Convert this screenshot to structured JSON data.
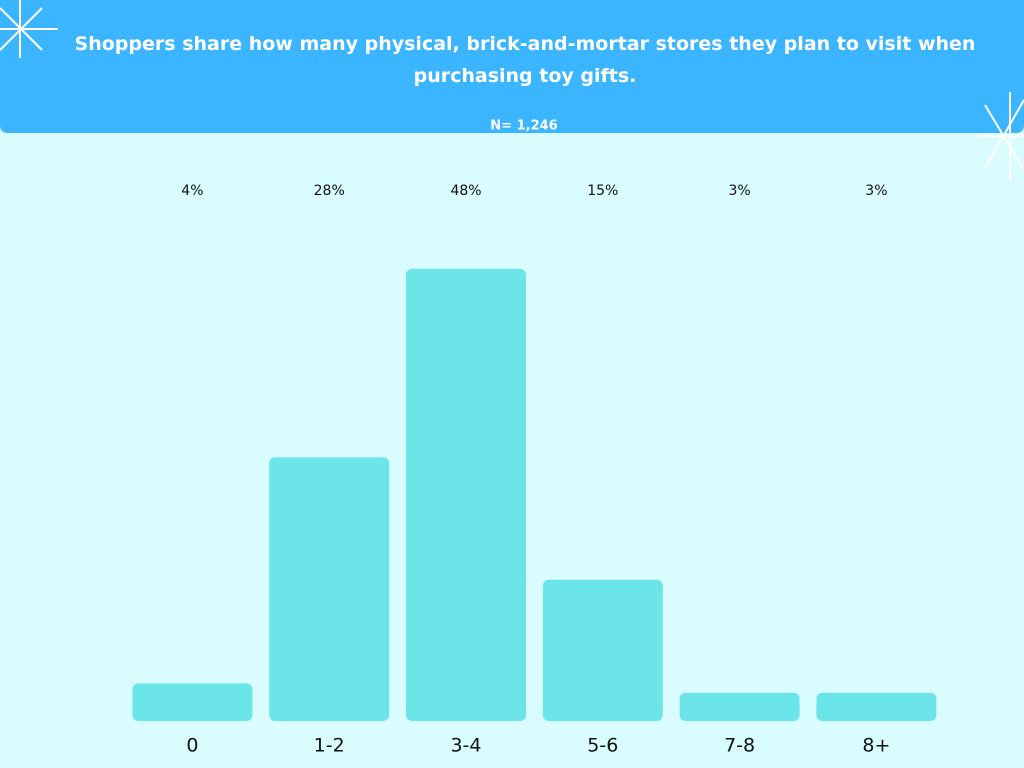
{
  "chart_data": {
    "type": "bar",
    "title": "Shoppers share how many physical, brick-and-mortar stores they plan to visit when purchasing toy gifts.",
    "subtitle": "N= 1,246",
    "categories": [
      "0",
      "1-2",
      "3-4",
      "5-6",
      "7-8",
      "8+"
    ],
    "values": [
      4,
      28,
      48,
      15,
      3,
      3
    ],
    "value_labels": [
      "4%",
      "28%",
      "48%",
      "15%",
      "3%",
      "3%"
    ],
    "color": "#6ce5e8"
  }
}
